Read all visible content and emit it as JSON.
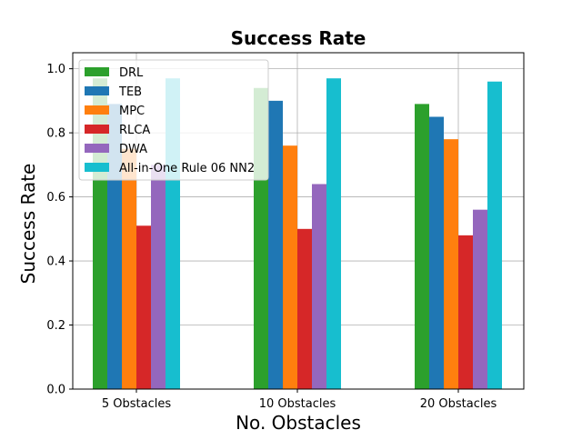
{
  "chart_data": {
    "type": "bar",
    "title": "Success Rate",
    "xlabel": "No. Obstacles",
    "ylabel": "Success Rate",
    "categories": [
      "5 Obstacles",
      "10 Obstacles",
      "20 Obstacles"
    ],
    "ylim": [
      0,
      1.0
    ],
    "yticks": [
      "0.0",
      "0.2",
      "0.4",
      "0.6",
      "0.8",
      "1.0"
    ],
    "grid": true,
    "legend_position": "top-left",
    "series": [
      {
        "name": "DRL",
        "color": "#2ca02c",
        "values": [
          0.97,
          0.94,
          0.89
        ]
      },
      {
        "name": "TEB",
        "color": "#1f77b4",
        "values": [
          0.89,
          0.9,
          0.85
        ]
      },
      {
        "name": "MPC",
        "color": "#ff7f0e",
        "values": [
          0.75,
          0.76,
          0.78
        ]
      },
      {
        "name": "RLCA",
        "color": "#d62728",
        "values": [
          0.51,
          0.5,
          0.48
        ]
      },
      {
        "name": "DWA",
        "color": "#9467bd",
        "values": [
          0.7,
          0.64,
          0.56
        ]
      },
      {
        "name": "All-in-One Rule 06 NN2",
        "color": "#17becf",
        "values": [
          0.97,
          0.97,
          0.96
        ]
      }
    ]
  }
}
